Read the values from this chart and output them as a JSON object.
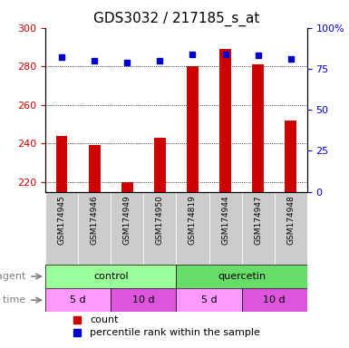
{
  "title": "GDS3032 / 217185_s_at",
  "samples": [
    "GSM174945",
    "GSM174946",
    "GSM174949",
    "GSM174950",
    "GSM174819",
    "GSM174944",
    "GSM174947",
    "GSM174948"
  ],
  "counts": [
    244,
    239,
    220,
    243,
    280,
    289,
    281,
    252
  ],
  "percentiles": [
    82,
    80,
    79,
    80,
    84,
    84,
    83,
    81
  ],
  "ylim_left": [
    215,
    300
  ],
  "ylim_right": [
    0,
    100
  ],
  "yticks_left": [
    220,
    240,
    260,
    280,
    300
  ],
  "yticks_right": [
    0,
    25,
    50,
    75,
    100
  ],
  "ytick_labels_right": [
    "0",
    "25",
    "50",
    "75",
    "100%"
  ],
  "bar_color": "#cc0000",
  "dot_color": "#0000cc",
  "grid_color": "#000000",
  "agent_control_color": "#99ff99",
  "agent_quercetin_color": "#66dd66",
  "time_5d_color": "#ff99ff",
  "time_10d_color": "#dd55dd",
  "sample_bg_color": "#cccccc",
  "agent_row": [
    "control",
    "control",
    "control",
    "control",
    "quercetin",
    "quercetin",
    "quercetin",
    "quercetin"
  ],
  "time_row": [
    "5 d",
    "10 d",
    "5 d",
    "10 d",
    "5 d",
    "10 d",
    "5 d",
    "10 d"
  ],
  "legend_count_color": "#cc0000",
  "legend_dot_color": "#0000cc",
  "title_fontsize": 11,
  "tick_fontsize": 8,
  "label_fontsize": 8,
  "annotation_fontsize": 8
}
